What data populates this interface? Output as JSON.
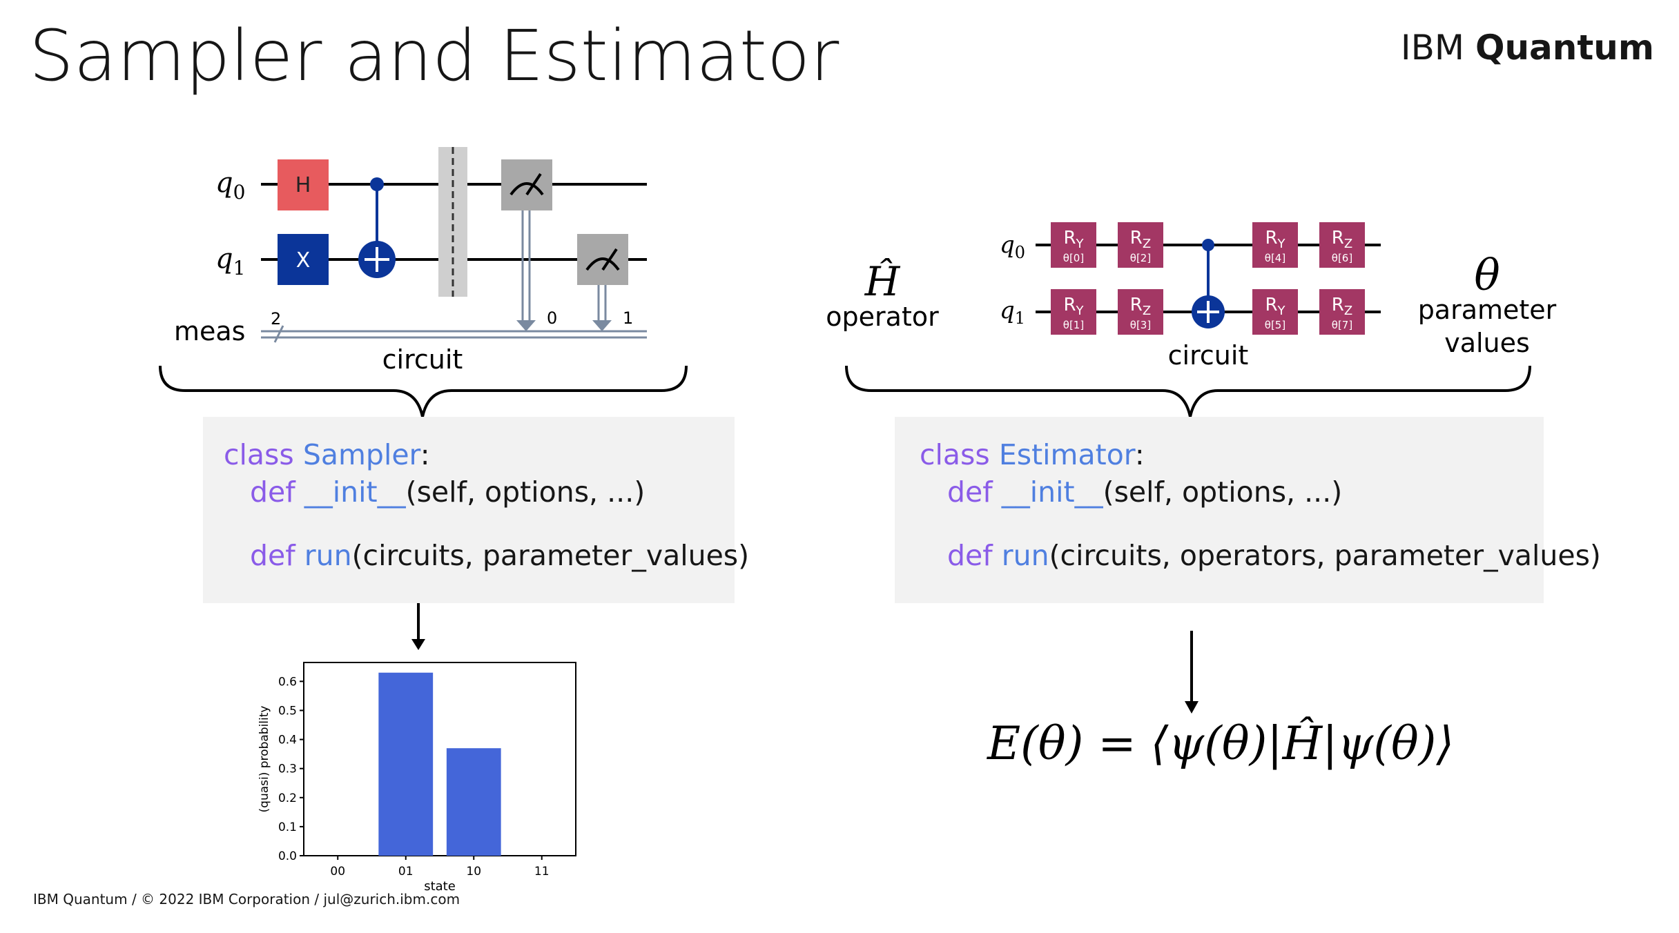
{
  "slide": {
    "title": "Sampler and Estimator",
    "brand_regular": "IBM",
    "brand_bold": "Quantum",
    "footer": "IBM Quantum / © 2022 IBM Corporation / jul@zurich.ibm.com"
  },
  "sampler": {
    "circuit": {
      "qubit_labels": [
        "q",
        "q"
      ],
      "qubit_indices": [
        "0",
        "1"
      ],
      "gate_h": "H",
      "gate_x": "X",
      "creg_label": "meas",
      "creg_size": "2",
      "bit_labels": [
        "0",
        "1"
      ],
      "caption": "circuit"
    },
    "code": {
      "class_kw": "class",
      "class_name": "Sampler",
      "colon": ":",
      "def1_kw": "def",
      "def1_name": "__init__",
      "def1_args": "(self, options, ...)",
      "def2_kw": "def",
      "def2_name": "run",
      "def2_args": "(circuits, parameter_values)"
    }
  },
  "estimator": {
    "operator_symbol": "Ĥ",
    "operator_label": "operator",
    "param_symbol": "θ",
    "param_label_1": "parameter",
    "param_label_2": "values",
    "circuit": {
      "qubit_labels": [
        "q",
        "q"
      ],
      "qubit_indices": [
        "0",
        "1"
      ],
      "gates_top": [
        {
          "base": "R",
          "sub": "Y",
          "param": "θ[0]"
        },
        {
          "base": "R",
          "sub": "Z",
          "param": "θ[2]"
        },
        {
          "base": "R",
          "sub": "Y",
          "param": "θ[4]"
        },
        {
          "base": "R",
          "sub": "Z",
          "param": "θ[6]"
        }
      ],
      "gates_bottom": [
        {
          "base": "R",
          "sub": "Y",
          "param": "θ[1]"
        },
        {
          "base": "R",
          "sub": "Z",
          "param": "θ[3]"
        },
        {
          "base": "R",
          "sub": "Y",
          "param": "θ[5]"
        },
        {
          "base": "R",
          "sub": "Z",
          "param": "θ[7]"
        }
      ],
      "caption": "circuit"
    },
    "code": {
      "class_kw": "class",
      "class_name": "Estimator",
      "colon": ":",
      "def1_kw": "def",
      "def1_name": "__init__",
      "def1_args": "(self, options, ...)",
      "def2_kw": "def",
      "def2_name": "run",
      "def2_args": "(circuits, operators, parameter_values)"
    },
    "formula": {
      "lhs": "E(θ) = ",
      "rhs": "⟨ψ(θ)|Ĥ|ψ(θ)⟩"
    }
  },
  "chart_data": {
    "type": "bar",
    "categories": [
      "00",
      "01",
      "10",
      "11"
    ],
    "values": [
      0,
      0.63,
      0.37,
      0
    ],
    "xlabel": "state",
    "ylabel": "(quasi) probability",
    "ylim": [
      0,
      0.665
    ],
    "yticks": [
      "0.0",
      "0.1",
      "0.2",
      "0.3",
      "0.4",
      "0.5",
      "0.6"
    ],
    "bar_color": "#4466d9",
    "grid": false
  },
  "colors": {
    "h_gate": "#e75b5e",
    "x_gate": "#0b3599",
    "cnot": "#0b3599",
    "measure": "#a8a8a8",
    "barrier": "#cfcfcf",
    "classical_wire": "#7a8aa0",
    "rotation_gate": "#a33764",
    "code_bg": "#f2f2f2",
    "keyword": "#8a5be8",
    "function": "#4f7fe0"
  }
}
